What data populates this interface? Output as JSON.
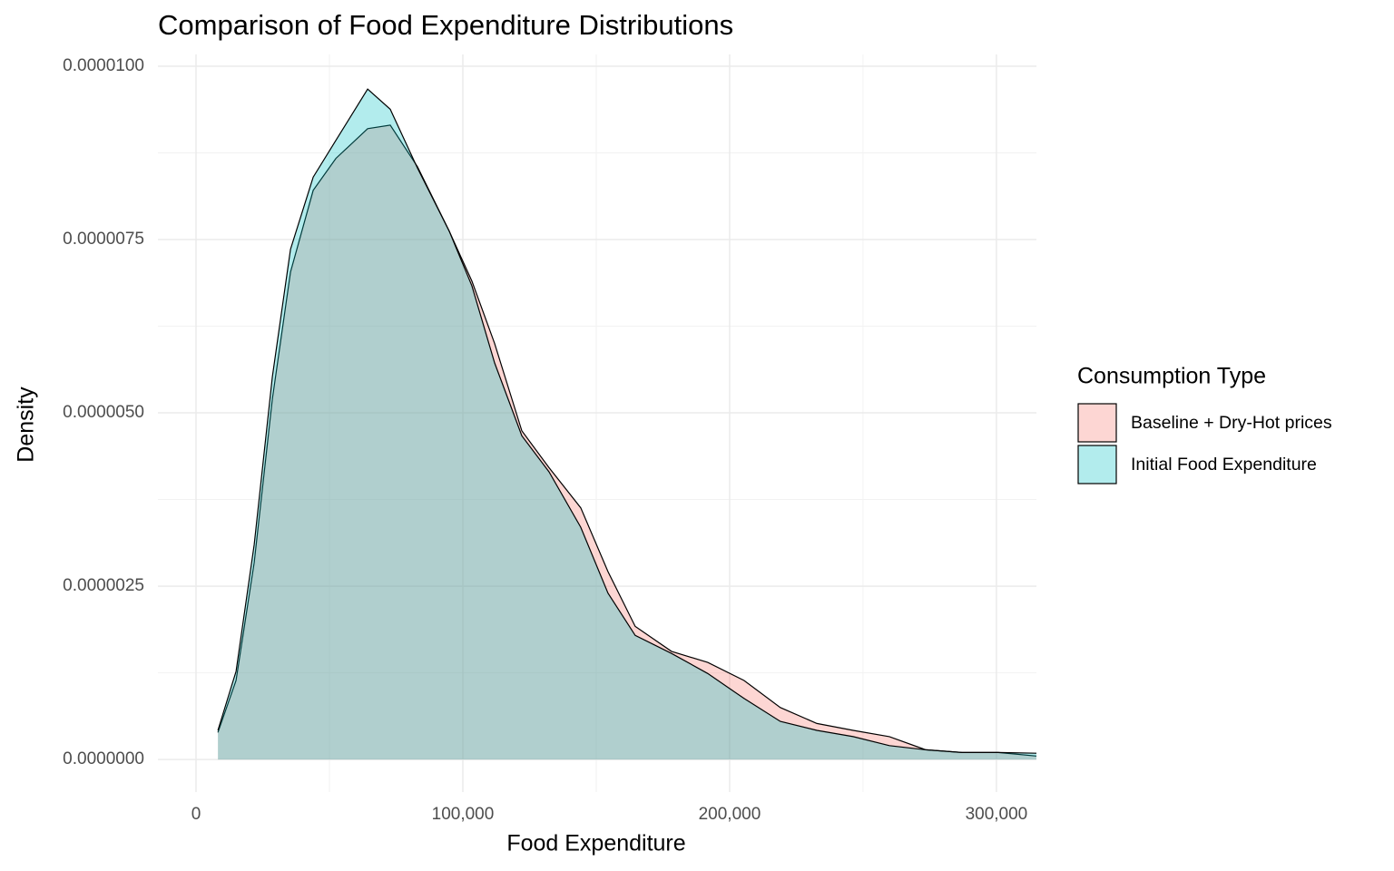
{
  "chart_data": {
    "type": "density",
    "title": "Comparison of Food Expenditure Distributions",
    "x_label": "Food Expenditure",
    "y_label": "Density",
    "legend_title": "Consumption Type",
    "legend_position": "right",
    "grid": true,
    "xlim": [
      -14300,
      315000
    ],
    "ylim": [
      -4.7e-07,
      1.017e-05
    ],
    "xticks": [
      0,
      {
        "value": 100000,
        "label": "100,000"
      },
      {
        "value": 200000,
        "label": "200,000"
      },
      {
        "value": 300000,
        "label": "300,000"
      }
    ],
    "x_minor_ticks": [
      50000,
      150000,
      250000
    ],
    "yticks": [
      {
        "value": 0,
        "label": "0.0000000"
      },
      {
        "value": 2.5e-06,
        "label": "0.0000025"
      },
      {
        "value": 5e-06,
        "label": "0.0000050"
      },
      {
        "value": 7.5e-06,
        "label": "0.0000075"
      },
      {
        "value": 1e-05,
        "label": "0.0000100"
      }
    ],
    "y_minor_ticks": [
      1.25e-06,
      3.75e-06,
      6.25e-06,
      8.75e-06
    ],
    "x": [
      8200,
      15000,
      21800,
      28600,
      35400,
      43900,
      52400,
      64300,
      72800,
      83000,
      94900,
      103400,
      111900,
      122100,
      132300,
      144200,
      154400,
      164600,
      178200,
      191800,
      205400,
      219000,
      232700,
      246300,
      259900,
      273500,
      287100,
      300700,
      315000
    ],
    "series": [
      {
        "name": "Baseline + Dry-Hot prices",
        "color": "#F8766D",
        "values": [
          3.9e-07,
          1.14e-06,
          2.84e-06,
          5.2e-06,
          7.03e-06,
          8.21e-06,
          8.67e-06,
          9.1e-06,
          9.15e-06,
          8.55e-06,
          7.62e-06,
          6.9e-06,
          6e-06,
          4.74e-06,
          4.21e-06,
          3.63e-06,
          2.71e-06,
          1.92e-06,
          1.56e-06,
          1.4e-06,
          1.14e-06,
          7.5e-07,
          5.2e-07,
          4.2e-07,
          3.3e-07,
          1.4e-07,
          1e-07,
          1e-07,
          5e-08
        ]
      },
      {
        "name": "Initial Food Expenditure",
        "color": "#00BFC4",
        "values": [
          4.2e-07,
          1.27e-06,
          3.1e-06,
          5.52e-06,
          7.36e-06,
          8.4e-06,
          8.93e-06,
          9.67e-06,
          9.38e-06,
          8.53e-06,
          7.62e-06,
          6.83e-06,
          5.72e-06,
          4.67e-06,
          4.15e-06,
          3.35e-06,
          2.4e-06,
          1.79e-06,
          1.53e-06,
          1.24e-06,
          8.8e-07,
          5.5e-07,
          4.2e-07,
          3.3e-07,
          2e-07,
          1.4e-07,
          1e-07,
          1e-07,
          9e-08
        ]
      }
    ]
  }
}
